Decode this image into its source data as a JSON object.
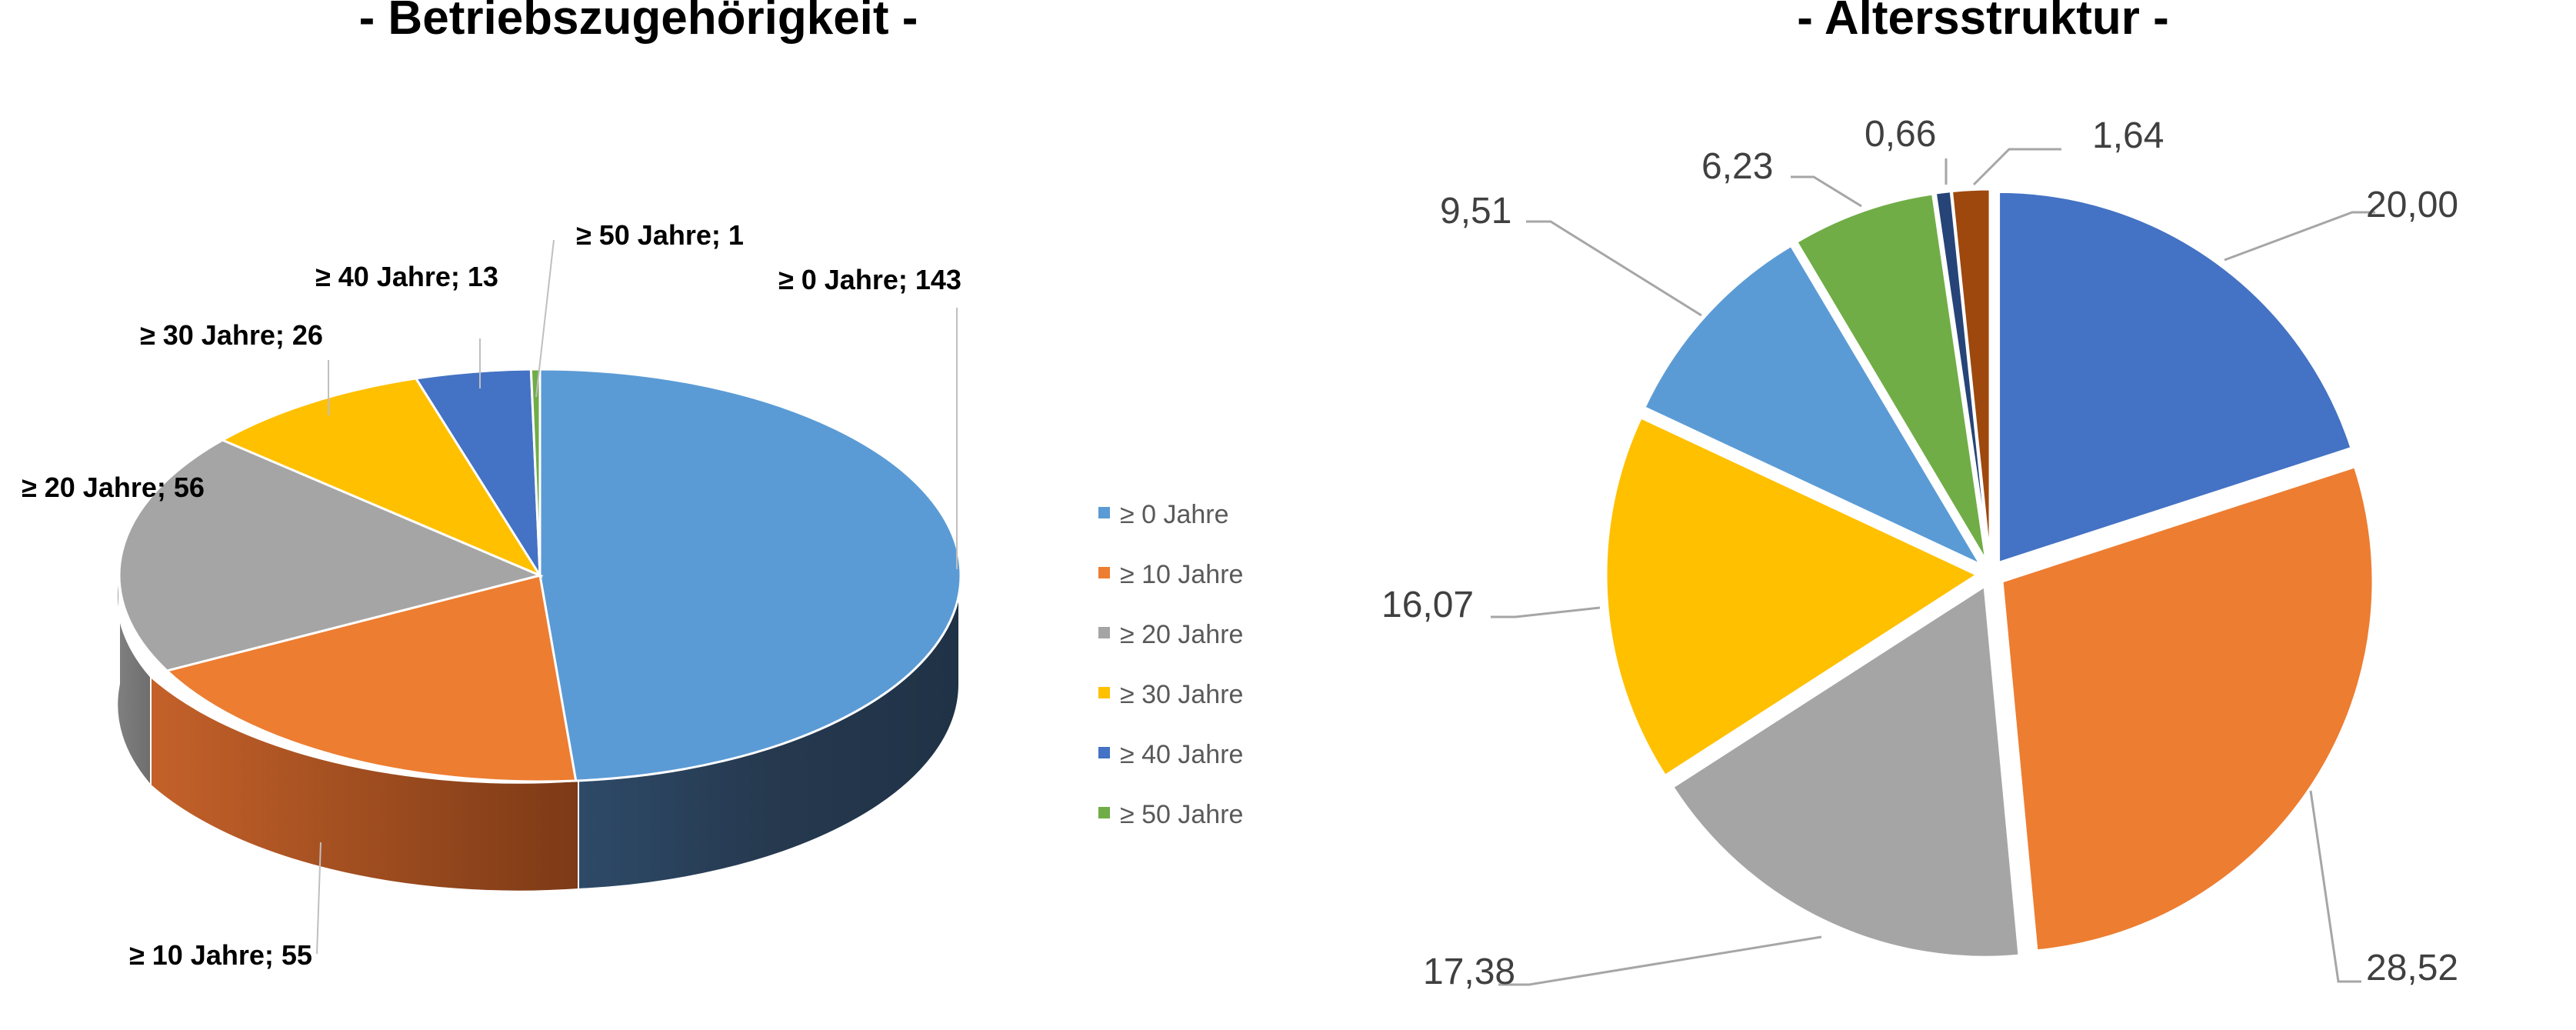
{
  "chart_data": [
    {
      "type": "pie",
      "title": "- Betriebszugehörigkeit -",
      "labels": [
        {
          "key": 0,
          "text": "≥ 0 Jahre; 143"
        },
        {
          "key": 1,
          "text": "≥ 10 Jahre; 55"
        },
        {
          "key": 2,
          "text": "≥ 20 Jahre; 56"
        },
        {
          "key": 3,
          "text": "≥ 30 Jahre; 26"
        },
        {
          "key": 4,
          "text": "≥ 40 Jahre; 13"
        },
        {
          "key": 5,
          "text": "≥ 50 Jahre; 1"
        }
      ],
      "slices": [
        {
          "category": "≥ 0 Jahre",
          "value": 143,
          "color": "#5b9bd5"
        },
        {
          "category": "≥ 10 Jahre",
          "value": 55,
          "color": "#ed7d31"
        },
        {
          "category": "≥ 20 Jahre",
          "value": 56,
          "color": "#a5a5a5"
        },
        {
          "category": "≥ 30 Jahre",
          "value": 26,
          "color": "#ffc000"
        },
        {
          "category": "≥ 40 Jahre",
          "value": 13,
          "color": "#4472c4"
        },
        {
          "category": "≥ 50 Jahre",
          "value": 1,
          "color": "#70ad47"
        }
      ],
      "style": "3d",
      "legend": {
        "position": "right",
        "entries": [
          "≥ 0 Jahre",
          "≥ 10 Jahre",
          "≥ 20 Jahre",
          "≥ 30 Jahre",
          "≥ 40 Jahre",
          "≥ 50 Jahre"
        ]
      }
    },
    {
      "type": "pie",
      "title": "- Altersstruktur -",
      "style": "exploded",
      "slices": [
        {
          "value": 20.0,
          "label": "20,00",
          "color": "#4472c4"
        },
        {
          "value": 28.52,
          "label": "28,52",
          "color": "#ed7d31"
        },
        {
          "value": 17.38,
          "label": "17,38",
          "color": "#a5a5a5"
        },
        {
          "value": 16.07,
          "label": "16,07",
          "color": "#ffc000"
        },
        {
          "value": 9.51,
          "label": "9,51",
          "color": "#5b9bd5"
        },
        {
          "value": 6.23,
          "label": "6,23",
          "color": "#70ad47"
        },
        {
          "value": 0.66,
          "label": "0,66",
          "color": "#264478"
        },
        {
          "value": 1.64,
          "label": "1,64",
          "color": "#9e480e"
        }
      ]
    }
  ]
}
